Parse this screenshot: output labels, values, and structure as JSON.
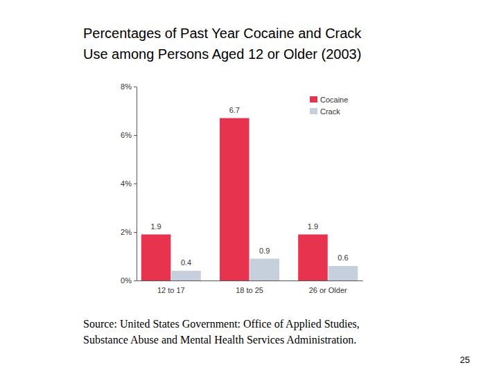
{
  "chart_data": {
    "type": "bar",
    "title": [
      "Percentages of Past Year Cocaine and Crack",
      "Use among Persons Aged 12 or Older (2003)"
    ],
    "categories": [
      "12 to 17",
      "18 to 25",
      "26 or Older"
    ],
    "series": [
      {
        "name": "Cocaine",
        "color": "#e8334f",
        "values": [
          1.9,
          6.7,
          1.9
        ]
      },
      {
        "name": "Crack",
        "color": "#c6cfdc",
        "values": [
          0.4,
          0.9,
          0.6
        ]
      }
    ],
    "ylim": [
      0,
      8
    ],
    "yticks": [
      {
        "value": 0,
        "label": "0%"
      },
      {
        "value": 2,
        "label": "2%"
      },
      {
        "value": 4,
        "label": "4%"
      },
      {
        "value": 6,
        "label": "6%"
      },
      {
        "value": 8,
        "label": "8%"
      }
    ],
    "grid": false,
    "legend": "upper right",
    "data_labels": true
  },
  "source": [
    "Source: United States Government: Office of Applied Studies,",
    "Substance Abuse and Mental Health Services Administration."
  ],
  "page_number": 25
}
